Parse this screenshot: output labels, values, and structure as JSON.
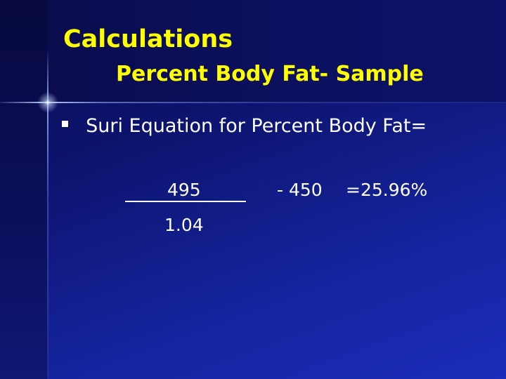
{
  "slide": {
    "title": "Calculations",
    "subtitle": "Percent Body Fat- Sample",
    "bullet": {
      "icon": "square-bullet-icon",
      "text": "Suri Equation for Percent Body Fat="
    },
    "equation": {
      "numerator": "495",
      "denominator": "1.04",
      "minus_term": "- 450",
      "result": "=25.96%"
    },
    "colors": {
      "title": "#ffff00",
      "body_text": "#ffffff",
      "background": "#0d1470"
    }
  }
}
